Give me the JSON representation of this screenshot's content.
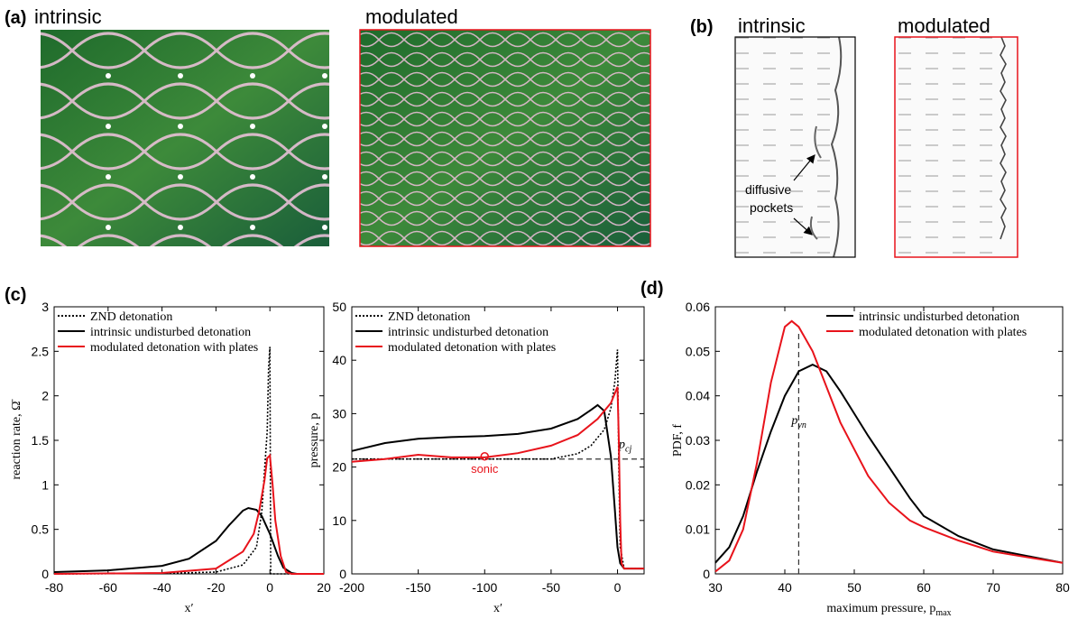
{
  "panels": {
    "a": {
      "label": "(a)",
      "left_title": "intrinsic",
      "right_title": "modulated"
    },
    "b": {
      "label": "(b)",
      "left_title": "intrinsic",
      "right_title": "modulated",
      "annotation": [
        "diffusive",
        "pockets"
      ]
    },
    "c": {
      "label": "(c)"
    },
    "d": {
      "label": "(d)"
    }
  },
  "chart_data": [
    {
      "type": "line",
      "xlabel": "x′",
      "ylabel": "reaction rate, Ω̄",
      "xlim": [
        -80,
        20
      ],
      "ylim": [
        0,
        3
      ],
      "xticks": [
        -80,
        -60,
        -40,
        -20,
        0,
        20
      ],
      "yticks": [
        0,
        0.5,
        1,
        1.5,
        2,
        2.5,
        3
      ],
      "legend": "upper left",
      "series": [
        {
          "name": "ZND detonation",
          "color": "#000000",
          "style": "dotted",
          "x": [
            -80,
            -40,
            -20,
            -10,
            -5,
            -3,
            -1,
            -0.5,
            0,
            0.3,
            20
          ],
          "values": [
            0,
            0.005,
            0.02,
            0.1,
            0.3,
            0.7,
            1.6,
            2.3,
            2.55,
            0,
            0
          ]
        },
        {
          "name": "intrinsic undisturbed detonation",
          "color": "#000000",
          "style": "solid",
          "x": [
            -80,
            -60,
            -40,
            -30,
            -20,
            -15,
            -10,
            -8,
            -5,
            -3,
            0,
            3,
            5,
            8,
            10,
            20
          ],
          "values": [
            0.02,
            0.04,
            0.09,
            0.17,
            0.37,
            0.55,
            0.71,
            0.74,
            0.72,
            0.65,
            0.45,
            0.2,
            0.07,
            0.01,
            0,
            0
          ]
        },
        {
          "name": "modulated detonation with plates",
          "color": "#e8131b",
          "style": "solid",
          "x": [
            -80,
            -40,
            -20,
            -10,
            -6,
            -4,
            -2,
            -1,
            0,
            1,
            2,
            4,
            6,
            8,
            20
          ],
          "values": [
            0,
            0.01,
            0.06,
            0.25,
            0.45,
            0.7,
            1.05,
            1.3,
            1.33,
            1.0,
            0.6,
            0.2,
            0.02,
            0,
            0
          ]
        }
      ]
    },
    {
      "type": "line",
      "xlabel": "x′",
      "ylabel": "pressure, p",
      "xlim": [
        -200,
        20
      ],
      "ylim": [
        0,
        50
      ],
      "xticks": [
        -200,
        -150,
        -100,
        -50,
        0
      ],
      "yticks": [
        0,
        10,
        20,
        30,
        40,
        50
      ],
      "legend": "upper left",
      "reference_lines": [
        {
          "orientation": "horizontal",
          "value": 21.5,
          "style": "dashed",
          "color": "#333333",
          "label": {
            "main": "p",
            "sub": "cj"
          }
        }
      ],
      "markers": [
        {
          "x": -100,
          "y": 22,
          "label": "sonic",
          "color": "#e8131b"
        }
      ],
      "series": [
        {
          "name": "ZND detonation",
          "color": "#000000",
          "style": "dotted",
          "x": [
            -200,
            -50,
            -30,
            -20,
            -10,
            -5,
            -2,
            0,
            1,
            2,
            5,
            20
          ],
          "values": [
            21.5,
            21.5,
            22.5,
            24,
            27,
            31,
            36,
            42,
            20,
            5,
            1,
            1
          ]
        },
        {
          "name": "intrinsic undisturbed detonation",
          "color": "#000000",
          "style": "solid",
          "x": [
            -200,
            -175,
            -150,
            -125,
            -100,
            -75,
            -50,
            -30,
            -20,
            -15,
            -10,
            -5,
            -2,
            0,
            2,
            5,
            20
          ],
          "values": [
            23,
            24.5,
            25.3,
            25.6,
            25.8,
            26.2,
            27.2,
            29,
            30.7,
            31.6,
            30.5,
            22,
            12,
            5,
            2,
            1,
            1
          ]
        },
        {
          "name": "modulated detonation with plates",
          "color": "#e8131b",
          "style": "solid",
          "x": [
            -200,
            -175,
            -150,
            -125,
            -100,
            -75,
            -50,
            -30,
            -15,
            -5,
            0,
            1,
            2,
            3,
            5,
            20
          ],
          "values": [
            21,
            21.5,
            22.3,
            21.8,
            21.8,
            22.6,
            24,
            26,
            29,
            32,
            35,
            25,
            10,
            2,
            1,
            1
          ]
        }
      ]
    },
    {
      "type": "line",
      "xlabel": {
        "main": "maximum pressure, p",
        "sub": "max"
      },
      "ylabel": "PDF, f",
      "xlim": [
        30,
        80
      ],
      "ylim": [
        0,
        0.06
      ],
      "xticks": [
        30,
        40,
        50,
        60,
        70,
        80
      ],
      "yticks": [
        0,
        0.01,
        0.02,
        0.03,
        0.04,
        0.05,
        0.06
      ],
      "legend": "upper right",
      "reference_lines": [
        {
          "orientation": "vertical",
          "value": 42,
          "style": "dashed",
          "color": "#333333",
          "label": {
            "main": "p",
            "sub": "vn"
          }
        }
      ],
      "series": [
        {
          "name": "intrinsic undisturbed detonation",
          "color": "#000000",
          "style": "solid",
          "x": [
            30,
            32,
            34,
            36,
            38,
            40,
            42,
            44,
            46,
            48,
            50,
            52,
            55,
            58,
            60,
            65,
            70,
            75,
            80
          ],
          "values": [
            0.0025,
            0.006,
            0.013,
            0.023,
            0.032,
            0.04,
            0.0455,
            0.047,
            0.0455,
            0.041,
            0.036,
            0.031,
            0.024,
            0.017,
            0.013,
            0.0085,
            0.0055,
            0.004,
            0.0025
          ]
        },
        {
          "name": "modulated detonation with plates",
          "color": "#e8131b",
          "style": "solid",
          "x": [
            30,
            32,
            34,
            36,
            38,
            40,
            41,
            42,
            44,
            46,
            48,
            50,
            52,
            55,
            58,
            60,
            65,
            70,
            75,
            80
          ],
          "values": [
            0.0005,
            0.003,
            0.01,
            0.025,
            0.043,
            0.0555,
            0.0568,
            0.0555,
            0.05,
            0.042,
            0.034,
            0.028,
            0.022,
            0.016,
            0.012,
            0.0105,
            0.0075,
            0.005,
            0.0037,
            0.0025
          ]
        }
      ]
    }
  ]
}
